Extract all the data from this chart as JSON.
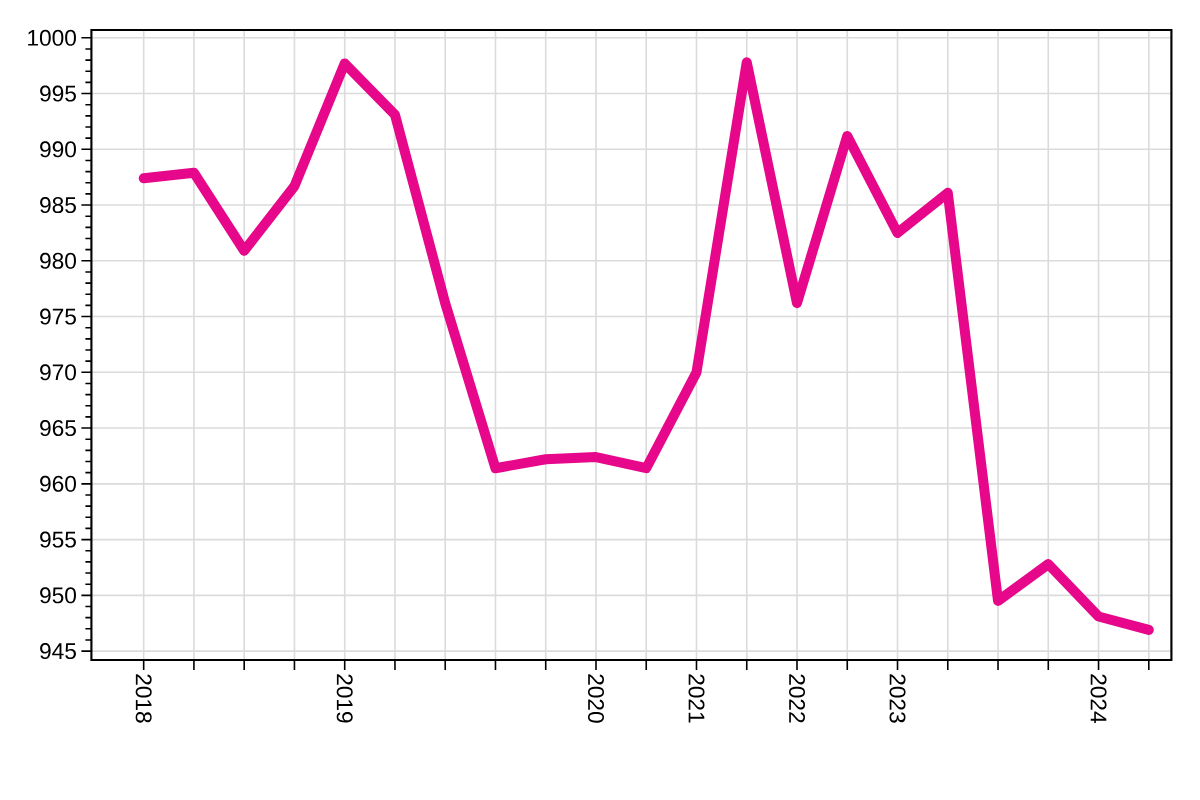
{
  "chart_data": {
    "type": "line",
    "categories": [
      "2018",
      null,
      null,
      null,
      "2019",
      null,
      null,
      null,
      null,
      "2020",
      null,
      "2021",
      null,
      "2022",
      null,
      "2023",
      null,
      null,
      null,
      "2024",
      null
    ],
    "values": [
      987.4,
      987.9,
      980.9,
      986.7,
      997.7,
      993.1,
      976.2,
      961.4,
      962.2,
      962.4,
      961.4,
      970.0,
      997.8,
      976.2,
      991.2,
      982.5,
      986.1,
      949.5,
      952.8,
      948.1,
      946.9
    ],
    "color": "#e6078b",
    "ylim": [
      944.2,
      1000.7
    ],
    "yticks": [
      945,
      {
        "value": 946,
        "label": null
      },
      {
        "value": 947,
        "label": null
      },
      {
        "value": 948,
        "label": null
      },
      {
        "value": 949,
        "label": null
      },
      950,
      {
        "value": 951,
        "label": null
      },
      {
        "value": 952,
        "label": null
      },
      {
        "value": 953,
        "label": null
      },
      {
        "value": 954,
        "label": null
      },
      955,
      {
        "value": 956,
        "label": null
      },
      {
        "value": 957,
        "label": null
      },
      {
        "value": 958,
        "label": null
      },
      {
        "value": 959,
        "label": null
      },
      960,
      {
        "value": 961,
        "label": null
      },
      {
        "value": 962,
        "label": null
      },
      {
        "value": 963,
        "label": null
      },
      {
        "value": 964,
        "label": null
      },
      965,
      {
        "value": 966,
        "label": null
      },
      {
        "value": 967,
        "label": null
      },
      {
        "value": 968,
        "label": null
      },
      {
        "value": 969,
        "label": null
      },
      970,
      {
        "value": 971,
        "label": null
      },
      {
        "value": 972,
        "label": null
      },
      {
        "value": 973,
        "label": null
      },
      {
        "value": 974,
        "label": null
      },
      975,
      {
        "value": 976,
        "label": null
      },
      {
        "value": 977,
        "label": null
      },
      {
        "value": 978,
        "label": null
      },
      {
        "value": 979,
        "label": null
      },
      980,
      {
        "value": 981,
        "label": null
      },
      {
        "value": 982,
        "label": null
      },
      {
        "value": 983,
        "label": null
      },
      {
        "value": 984,
        "label": null
      },
      985,
      {
        "value": 986,
        "label": null
      },
      {
        "value": 987,
        "label": null
      },
      {
        "value": 988,
        "label": null
      },
      {
        "value": 989,
        "label": null
      },
      990,
      {
        "value": 991,
        "label": null
      },
      {
        "value": 992,
        "label": null
      },
      {
        "value": 993,
        "label": null
      },
      {
        "value": 994,
        "label": null
      },
      995,
      {
        "value": 996,
        "label": null
      },
      {
        "value": 997,
        "label": null
      },
      {
        "value": 998,
        "label": null
      },
      {
        "value": 999,
        "label": null
      },
      1000
    ],
    "grid": true
  }
}
